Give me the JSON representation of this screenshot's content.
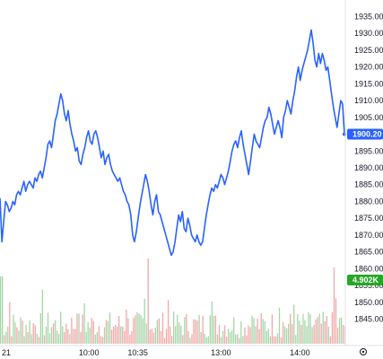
{
  "chart_data": {
    "type": "line",
    "colors": {
      "line": "#2962ff",
      "price_tag_bg": "#2962ff",
      "volume_tag_bg": "#26a626",
      "volume_up": "#a5d6a7",
      "volume_down": "#f0a8a8",
      "axis_text": "#131722",
      "axis_line": "#e0e3eb"
    },
    "ylim": [
      1842.5,
      1937.5
    ],
    "y_ticks": [
      "1935.00",
      "1930.00",
      "1925.00",
      "1920.00",
      "1915.00",
      "1910.00",
      "1905.00",
      "1900.00",
      "1895.00",
      "1890.00",
      "1885.00",
      "1880.00",
      "1875.00",
      "1870.00",
      "1865.00",
      "1860.00",
      "1855.00",
      "1850.00",
      "1845.00"
    ],
    "x_tick_labels": [
      "21",
      "10:00",
      "10:35",
      "13:00",
      "14:00"
    ],
    "x_tick_positions": [
      0,
      62,
      96,
      154,
      209
    ],
    "x_max": 240,
    "series": [
      {
        "values": [
          1881,
          1868,
          1874,
          1880,
          1879,
          1877,
          1878,
          1880,
          1879,
          1882,
          1883,
          1882,
          1884,
          1886,
          1883,
          1885,
          1886,
          1885,
          1884,
          1887,
          1886,
          1888,
          1889,
          1887,
          1890,
          1893,
          1897,
          1898,
          1896,
          1900,
          1904,
          1906,
          1909,
          1912,
          1910,
          1906,
          1904,
          1907,
          1903,
          1900,
          1898,
          1895,
          1896,
          1892,
          1891,
          1894,
          1896,
          1899,
          1901,
          1898,
          1897,
          1900,
          1901,
          1899,
          1896,
          1893,
          1895,
          1891,
          1893,
          1894,
          1891,
          1889,
          1888,
          1887,
          1886,
          1887,
          1885,
          1883,
          1882,
          1880,
          1879,
          1876,
          1870,
          1868,
          1871,
          1875,
          1879,
          1882,
          1885,
          1888,
          1886,
          1883,
          1879,
          1876,
          1880,
          1882,
          1877,
          1876,
          1874,
          1872,
          1870,
          1868,
          1866,
          1864,
          1865,
          1868,
          1872,
          1876,
          1874,
          1877,
          1872,
          1871,
          1875,
          1873,
          1870,
          1869,
          1868,
          1870,
          1868,
          1867,
          1868,
          1872,
          1876,
          1879,
          1882,
          1884,
          1883,
          1885,
          1884,
          1886,
          1888,
          1887,
          1885,
          1887,
          1889,
          1892,
          1895,
          1897,
          1898,
          1896,
          1899,
          1901,
          1897,
          1894,
          1891,
          1888,
          1892,
          1896,
          1900,
          1898,
          1897,
          1896,
          1899,
          1902,
          1904,
          1905,
          1908,
          1906,
          1903,
          1900,
          1902,
          1904,
          1902,
          1899,
          1905,
          1907,
          1910,
          1908,
          1906,
          1910,
          1913,
          1917,
          1920,
          1916,
          1919,
          1921,
          1923,
          1925,
          1928,
          1931,
          1927,
          1922,
          1920,
          1924,
          1921,
          1924,
          1922,
          1919,
          1920,
          1916,
          1912,
          1908,
          1905,
          1902,
          1906,
          1910,
          1909,
          1900
        ],
        "last_value_label": "1900.20"
      }
    ],
    "volume": {
      "last_label": "4.902K"
    }
  },
  "icons": {
    "settings": "gear-icon"
  }
}
